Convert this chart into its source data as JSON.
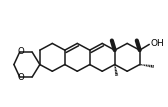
{
  "bg_color": "#ffffff",
  "line_color": "#1a1a1a",
  "lw": 1.1,
  "bold_lw": 3.0,
  "text_color": "#000000",
  "OH_label": "OH",
  "O_label": "O",
  "font_size_OH": 6.5,
  "font_size_O": 6.2,
  "figsize": [
    1.68,
    1.07
  ],
  "dpi": 100,
  "xlim": [
    0,
    168
  ],
  "ylim": [
    107,
    0
  ]
}
